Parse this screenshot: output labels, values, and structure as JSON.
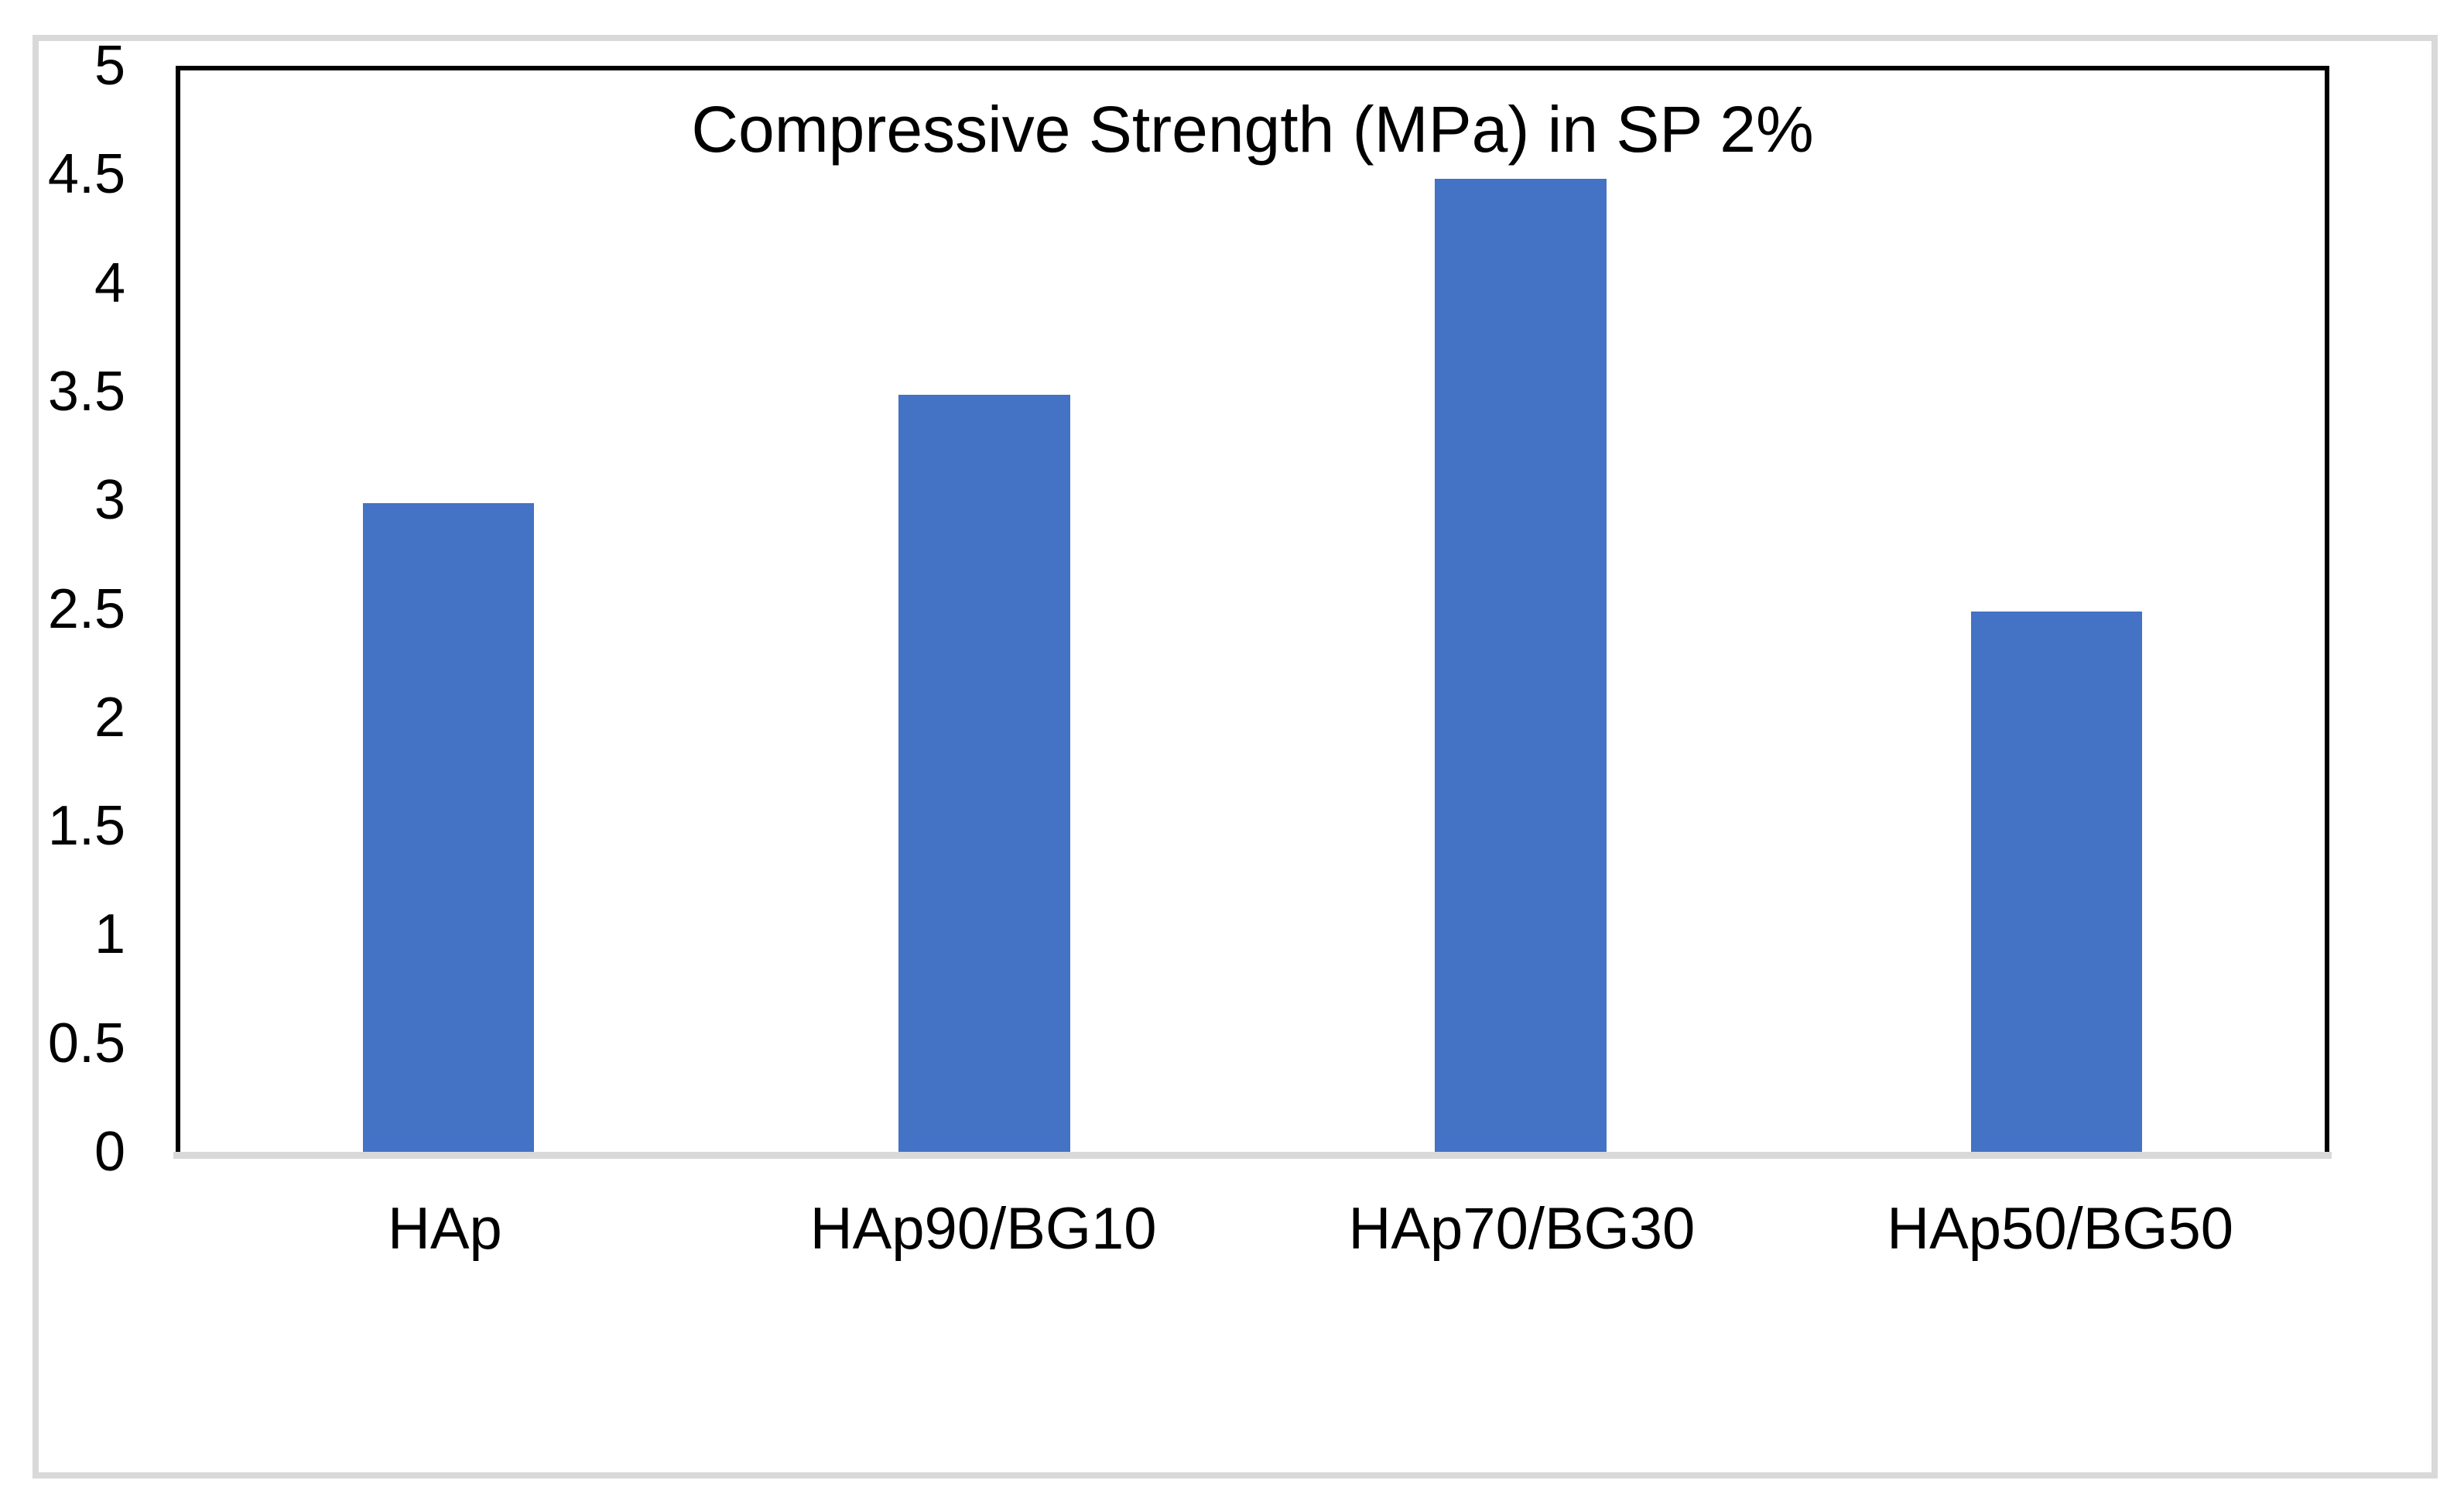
{
  "chart_data": {
    "type": "bar",
    "title": "Compressive Strength (MPa) in SP 2%",
    "categories": [
      "HAp",
      "HAp90/BG10",
      "HAp70/BG30",
      "HAp50/BG50"
    ],
    "values": [
      3,
      3.5,
      4.5,
      2.5
    ],
    "series": [
      {
        "name": "Compressive Strength (MPa) in SP 2%",
        "values": [
          3,
          3.5,
          4.5,
          2.5
        ]
      }
    ],
    "xlabel": "",
    "ylabel": "",
    "ylim": [
      0,
      5
    ],
    "ytick_step": 0.5,
    "yticks": [
      "5",
      "4.5",
      "4",
      "3.5",
      "3",
      "2.5",
      "2",
      "1.5",
      "1",
      "0.5",
      "0"
    ],
    "grid": false,
    "legend_position": "none",
    "colors": {
      "bar_fill": "#4472c4",
      "plot_border": "#000000",
      "category_axis_line": "#d9d9d9",
      "outer_frame_border": "#d9d9d9",
      "text": "#000000",
      "background": "#ffffff"
    }
  }
}
